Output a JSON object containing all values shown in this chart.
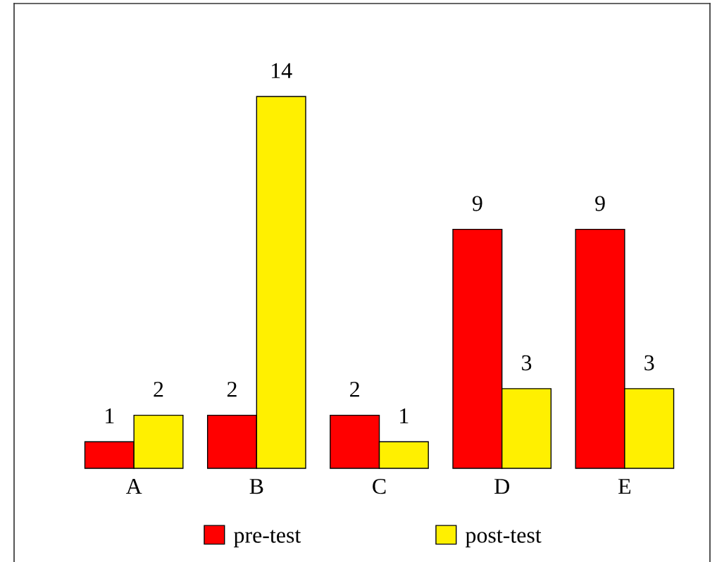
{
  "chart_data": {
    "type": "bar",
    "categories": [
      "A",
      "B",
      "C",
      "D",
      "E"
    ],
    "series": [
      {
        "name": "pre-test",
        "color": "#ff0000",
        "values": [
          1,
          2,
          2,
          9,
          9
        ]
      },
      {
        "name": "post-test",
        "color": "#fff000",
        "values": [
          2,
          14,
          1,
          3,
          3
        ]
      }
    ],
    "data_labels": true,
    "legend": "bottom",
    "grid": false
  }
}
